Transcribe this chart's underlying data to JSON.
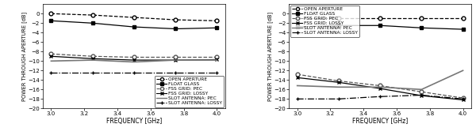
{
  "freq": [
    3.0,
    3.25,
    3.5,
    3.75,
    4.0
  ],
  "left": {
    "open_aperture": [
      0.0,
      -0.3,
      -0.8,
      -1.3,
      -1.5
    ],
    "float_glass": [
      -1.5,
      -2.0,
      -2.8,
      -3.2,
      -3.0
    ],
    "fss_grid_pec": [
      -8.5,
      -9.0,
      -9.2,
      -9.2,
      -9.2
    ],
    "fss_grid_lossy": [
      -9.0,
      -9.5,
      -9.8,
      -9.8,
      -9.7
    ],
    "slot_antenna_pec": [
      -10.0,
      -9.8,
      -10.2,
      -9.8,
      -9.8
    ],
    "slot_antenna_lossy": [
      -12.5,
      -12.5,
      -12.5,
      -12.5,
      -12.5
    ]
  },
  "right": {
    "open_aperture": [
      -1.0,
      -1.0,
      -1.0,
      -1.0,
      -1.0
    ],
    "float_glass": [
      -2.8,
      -2.5,
      -2.5,
      -3.0,
      -3.3
    ],
    "fss_grid_pec": [
      -12.8,
      -14.2,
      -15.2,
      -16.5,
      -17.8
    ],
    "fss_grid_lossy": [
      -13.5,
      -14.5,
      -15.8,
      -17.3,
      -18.2
    ],
    "slot_antenna_pec": [
      -15.2,
      -15.5,
      -15.5,
      -16.0,
      -12.0
    ],
    "slot_antenna_lossy": [
      -18.0,
      -18.0,
      -17.5,
      -17.2,
      -18.0
    ]
  },
  "ylim": [
    -20,
    2
  ],
  "yticks": [
    0,
    -2,
    -4,
    -6,
    -8,
    -10,
    -12,
    -14,
    -16,
    -18,
    -20
  ],
  "xlim": [
    2.95,
    4.05
  ],
  "xticks": [
    3.0,
    3.2,
    3.4,
    3.6,
    3.8,
    4.0
  ],
  "xlabel": "FREQUENCY [GHz]",
  "ylabel": "POWER THROUGH APERTURE [dB]",
  "legend_labels": [
    "OPEN APERTURE",
    "FLOAT GLASS",
    "FSS GRID: PEC",
    "FSS GRID: LOSSY",
    "SLOT ANTENNA: PEC",
    "SLOT ANTENNA: LOSSY"
  ],
  "styles": [
    {
      "ls": "--",
      "marker": "o",
      "color": "#000000",
      "mfc": "white",
      "lw": 0.9,
      "ms": 3.5
    },
    {
      "ls": "-",
      "marker": "s",
      "color": "#000000",
      "mfc": "#000000",
      "lw": 0.9,
      "ms": 3.0
    },
    {
      "ls": "--",
      "marker": "o",
      "color": "#555555",
      "mfc": "white",
      "lw": 0.9,
      "ms": 3.5
    },
    {
      "ls": "-",
      "marker": "x",
      "color": "#000000",
      "mfc": "#000000",
      "lw": 0.9,
      "ms": 3.5
    },
    {
      "ls": "-",
      "marker": null,
      "color": "#777777",
      "mfc": "#777777",
      "lw": 1.2,
      "ms": 0
    },
    {
      "ls": "-.",
      "marker": "+",
      "color": "#000000",
      "mfc": "#000000",
      "lw": 0.9,
      "ms": 3.5
    }
  ]
}
